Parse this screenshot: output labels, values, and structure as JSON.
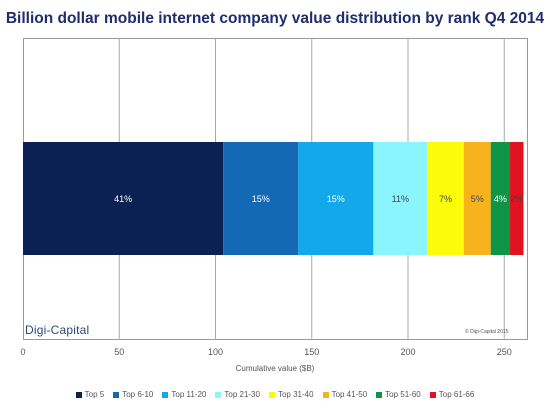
{
  "chart_data": {
    "type": "bar",
    "orientation": "horizontal",
    "stacked": true,
    "title": "Billion dollar mobile internet company value distribution by rank Q4 2014",
    "xlabel": "Cumulative value ($B)",
    "ylabel": "",
    "xlim": [
      0,
      260
    ],
    "xticks": [
      0,
      50,
      100,
      150,
      200,
      250
    ],
    "grid": "vertical",
    "legend_position": "bottom",
    "series": [
      {
        "name": "Top 5",
        "value": 104,
        "label": "41%",
        "color": "#0b2153",
        "label_color": "#ffffff"
      },
      {
        "name": "Top 6-10",
        "value": 39,
        "label": "15%",
        "color": "#1369b4",
        "label_color": "#ffffff"
      },
      {
        "name": "Top 11-20",
        "value": 39,
        "label": "15%",
        "color": "#12a8ea",
        "label_color": "#ffffff"
      },
      {
        "name": "Top 21-30",
        "value": 28,
        "label": "11%",
        "color": "#8af4ff",
        "label_color": "#444444"
      },
      {
        "name": "Top 31-40",
        "value": 19,
        "label": "7%",
        "color": "#fbfb0a",
        "label_color": "#444444"
      },
      {
        "name": "Top 41-50",
        "value": 14,
        "label": "5%",
        "color": "#f6b31b",
        "label_color": "#444444"
      },
      {
        "name": "Top 51-60",
        "value": 10,
        "label": "4%",
        "color": "#109447",
        "label_color": "#ffffff"
      },
      {
        "name": "Top 61-66",
        "value": 7,
        "label": "2%",
        "color": "#e2121e",
        "label_color": "#444444"
      }
    ]
  },
  "branding": {
    "logo_text": "Digi-Capital",
    "copyright": "© Digi-Capital 2015"
  }
}
